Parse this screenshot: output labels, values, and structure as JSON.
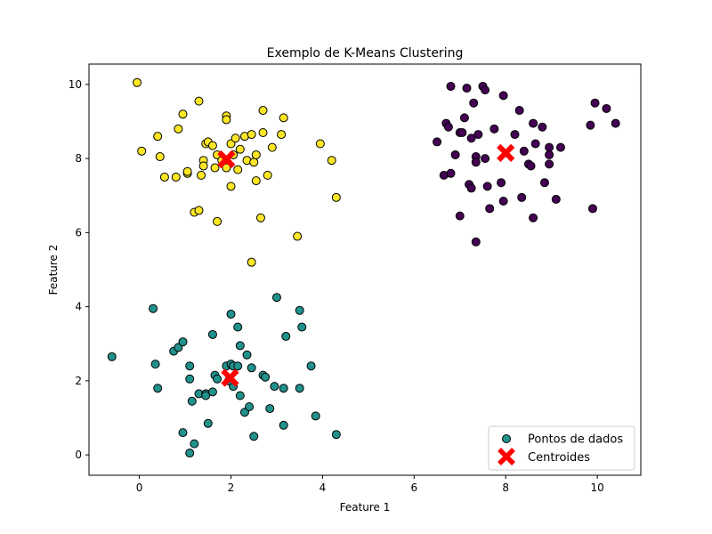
{
  "chart_data": {
    "type": "scatter",
    "title": "Exemplo de K-Means Clustering",
    "xlabel": "Feature 1",
    "ylabel": "Feature 2",
    "xlim": [
      -1.1,
      10.95
    ],
    "ylim": [
      -0.55,
      10.55
    ],
    "xticks": [
      0,
      2,
      4,
      6,
      8,
      10
    ],
    "yticks": [
      0,
      2,
      4,
      6,
      8,
      10
    ],
    "grid": false,
    "legend_position": "lower right",
    "legend": {
      "points_label": "Pontos de dados",
      "centroids_label": "Centroides"
    },
    "clusters": [
      {
        "color": "#fde725",
        "points": [
          [
            -0.05,
            10.05
          ],
          [
            0.05,
            8.2
          ],
          [
            0.4,
            8.6
          ],
          [
            0.45,
            8.05
          ],
          [
            0.55,
            7.5
          ],
          [
            0.8,
            7.5
          ],
          [
            0.85,
            8.8
          ],
          [
            0.95,
            9.2
          ],
          [
            1.05,
            7.6
          ],
          [
            1.05,
            7.65
          ],
          [
            1.2,
            6.55
          ],
          [
            1.3,
            6.6
          ],
          [
            1.3,
            9.55
          ],
          [
            1.35,
            7.55
          ],
          [
            1.4,
            7.95
          ],
          [
            1.4,
            7.8
          ],
          [
            1.45,
            8.4
          ],
          [
            1.5,
            8.45
          ],
          [
            1.6,
            8.35
          ],
          [
            1.65,
            7.75
          ],
          [
            1.7,
            8.1
          ],
          [
            1.7,
            6.3
          ],
          [
            1.8,
            7.95
          ],
          [
            1.9,
            9.15
          ],
          [
            1.9,
            9.05
          ],
          [
            1.9,
            7.75
          ],
          [
            2.0,
            8.4
          ],
          [
            2.0,
            7.25
          ],
          [
            2.05,
            8.1
          ],
          [
            2.1,
            8.55
          ],
          [
            2.15,
            7.7
          ],
          [
            2.2,
            8.25
          ],
          [
            2.3,
            8.6
          ],
          [
            2.35,
            7.95
          ],
          [
            2.45,
            8.65
          ],
          [
            2.45,
            5.2
          ],
          [
            2.5,
            7.9
          ],
          [
            2.55,
            8.1
          ],
          [
            2.55,
            7.4
          ],
          [
            2.65,
            6.4
          ],
          [
            2.7,
            9.3
          ],
          [
            2.7,
            8.7
          ],
          [
            2.8,
            7.55
          ],
          [
            2.9,
            8.3
          ],
          [
            3.1,
            8.65
          ],
          [
            3.15,
            9.1
          ],
          [
            3.45,
            5.9
          ],
          [
            3.95,
            8.4
          ],
          [
            4.2,
            7.95
          ],
          [
            4.3,
            6.95
          ]
        ]
      },
      {
        "color": "#21918c",
        "points": [
          [
            -0.6,
            2.65
          ],
          [
            0.3,
            3.95
          ],
          [
            0.35,
            2.45
          ],
          [
            0.4,
            1.8
          ],
          [
            0.75,
            2.8
          ],
          [
            0.85,
            2.9
          ],
          [
            0.95,
            3.05
          ],
          [
            0.95,
            0.6
          ],
          [
            1.1,
            2.05
          ],
          [
            1.1,
            2.4
          ],
          [
            1.1,
            0.05
          ],
          [
            1.15,
            1.45
          ],
          [
            1.2,
            0.3
          ],
          [
            1.3,
            1.65
          ],
          [
            1.45,
            1.65
          ],
          [
            1.45,
            1.6
          ],
          [
            1.5,
            0.85
          ],
          [
            1.6,
            3.25
          ],
          [
            1.6,
            1.7
          ],
          [
            1.65,
            2.15
          ],
          [
            1.7,
            2.05
          ],
          [
            1.9,
            2.4
          ],
          [
            2.0,
            2.45
          ],
          [
            2.0,
            3.8
          ],
          [
            2.05,
            1.85
          ],
          [
            2.05,
            2.4
          ],
          [
            2.15,
            2.4
          ],
          [
            2.15,
            3.45
          ],
          [
            2.2,
            1.6
          ],
          [
            2.2,
            2.95
          ],
          [
            2.3,
            1.15
          ],
          [
            2.35,
            2.7
          ],
          [
            2.4,
            1.3
          ],
          [
            2.45,
            2.35
          ],
          [
            2.5,
            0.5
          ],
          [
            2.7,
            2.15
          ],
          [
            2.75,
            2.1
          ],
          [
            2.85,
            1.25
          ],
          [
            2.95,
            1.85
          ],
          [
            3.0,
            4.25
          ],
          [
            3.15,
            1.8
          ],
          [
            3.15,
            0.8
          ],
          [
            3.2,
            3.2
          ],
          [
            3.5,
            3.9
          ],
          [
            3.5,
            1.8
          ],
          [
            3.55,
            3.45
          ],
          [
            3.75,
            2.4
          ],
          [
            3.85,
            1.05
          ],
          [
            4.3,
            0.55
          ],
          [
            1.95,
            2.0
          ]
        ]
      },
      {
        "color": "#440154",
        "points": [
          [
            6.5,
            8.45
          ],
          [
            6.65,
            7.55
          ],
          [
            6.7,
            8.95
          ],
          [
            6.75,
            8.85
          ],
          [
            6.8,
            9.95
          ],
          [
            6.8,
            7.6
          ],
          [
            6.9,
            8.1
          ],
          [
            7.0,
            6.45
          ],
          [
            7.0,
            8.7
          ],
          [
            7.1,
            9.1
          ],
          [
            7.15,
            9.9
          ],
          [
            7.2,
            7.3
          ],
          [
            7.25,
            7.2
          ],
          [
            7.25,
            8.55
          ],
          [
            7.3,
            9.5
          ],
          [
            7.35,
            8.05
          ],
          [
            7.35,
            7.9
          ],
          [
            7.35,
            5.75
          ],
          [
            7.4,
            8.65
          ],
          [
            7.5,
            9.95
          ],
          [
            7.55,
            8.0
          ],
          [
            7.55,
            9.85
          ],
          [
            7.6,
            7.25
          ],
          [
            7.65,
            6.65
          ],
          [
            7.75,
            8.8
          ],
          [
            7.9,
            7.35
          ],
          [
            7.95,
            9.7
          ],
          [
            7.95,
            6.85
          ],
          [
            8.2,
            8.65
          ],
          [
            8.3,
            9.3
          ],
          [
            8.35,
            6.95
          ],
          [
            8.4,
            8.2
          ],
          [
            8.5,
            7.85
          ],
          [
            8.55,
            7.8
          ],
          [
            8.6,
            8.95
          ],
          [
            8.6,
            6.4
          ],
          [
            8.65,
            8.4
          ],
          [
            8.8,
            8.85
          ],
          [
            8.85,
            7.35
          ],
          [
            8.95,
            8.3
          ],
          [
            8.95,
            8.1
          ],
          [
            8.95,
            7.85
          ],
          [
            9.1,
            6.9
          ],
          [
            9.2,
            8.3
          ],
          [
            9.85,
            8.9
          ],
          [
            9.9,
            6.65
          ],
          [
            9.95,
            9.5
          ],
          [
            10.2,
            9.35
          ],
          [
            10.4,
            8.95
          ],
          [
            7.05,
            8.7
          ]
        ]
      }
    ],
    "centroids": {
      "color": "#ff0000",
      "points": [
        [
          1.9,
          7.98
        ],
        [
          1.98,
          2.08
        ],
        [
          8.0,
          8.15
        ]
      ]
    }
  }
}
